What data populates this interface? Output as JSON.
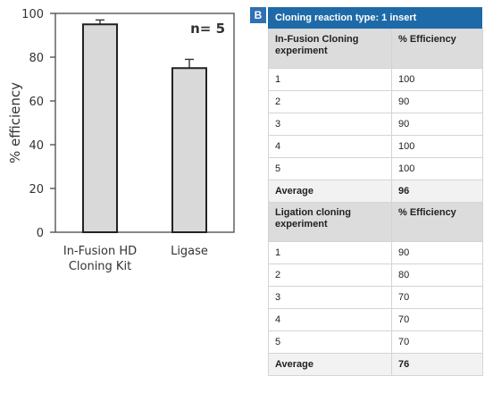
{
  "chart_data": {
    "type": "bar",
    "categories": [
      "In-Fusion HD Cloning Kit",
      "Ligase"
    ],
    "category_lines": [
      [
        "In-Fusion HD",
        "Cloning Kit"
      ],
      [
        "Ligase"
      ]
    ],
    "values": [
      95,
      75
    ],
    "error": [
      2,
      4
    ],
    "ylabel": "% efficiency",
    "ylim": [
      0,
      100
    ],
    "yticks": [
      0,
      20,
      40,
      60,
      80,
      100
    ],
    "annotation": "n= 5",
    "grid": false,
    "bar_color": "#d9d9d9"
  },
  "panel_b": {
    "letter": "B",
    "title": "Cloning reaction type: 1 insert",
    "sections": [
      {
        "header_col1": "In-Fusion Cloning experiment",
        "header_col2": "% Efficiency",
        "rows": [
          [
            "1",
            "100"
          ],
          [
            "2",
            "90"
          ],
          [
            "3",
            "90"
          ],
          [
            "4",
            "100"
          ],
          [
            "5",
            "100"
          ]
        ],
        "average_label": "Average",
        "average_value": "96"
      },
      {
        "header_col1": "Ligation cloning experiment",
        "header_col2": "% Efficiency",
        "rows": [
          [
            "1",
            "90"
          ],
          [
            "2",
            "80"
          ],
          [
            "3",
            "70"
          ],
          [
            "4",
            "70"
          ],
          [
            "5",
            "70"
          ]
        ],
        "average_label": "Average",
        "average_value": "76"
      }
    ],
    "colors": {
      "header": "#1e6aa8",
      "subheader": "#dcdcdc",
      "letter": "#2f6fb3"
    }
  }
}
